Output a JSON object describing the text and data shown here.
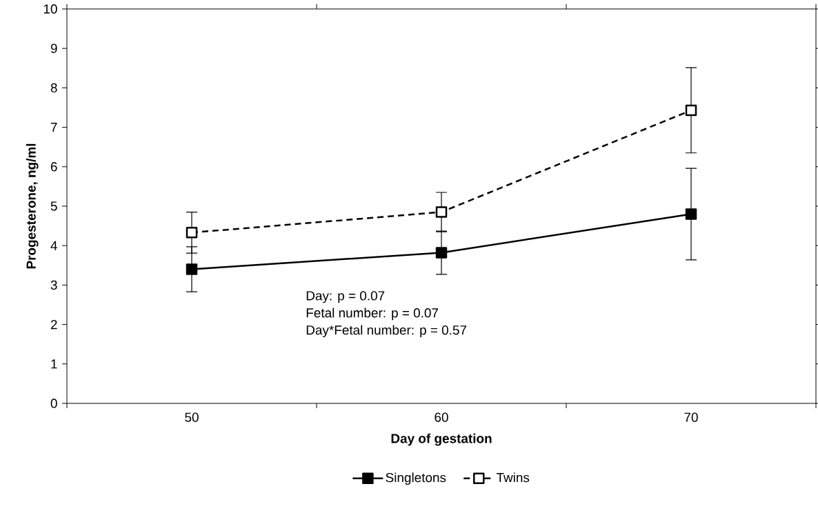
{
  "chart_data": {
    "type": "line",
    "xlabel": "Day of gestation",
    "ylabel": "Progesterone, ng/ml",
    "categories": [
      "50",
      "60",
      "70"
    ],
    "series": [
      {
        "name": "Singletons",
        "color": "#000000",
        "values": [
          3.4,
          3.82,
          4.8
        ],
        "errors": [
          0.57,
          0.55,
          1.16
        ],
        "line_style": "solid"
      },
      {
        "name": "Twins",
        "color": "#000000",
        "values": [
          4.33,
          4.85,
          7.43
        ],
        "errors": [
          0.52,
          0.5,
          1.08
        ],
        "line_style": "dashed"
      }
    ],
    "ylim": [
      0,
      10
    ],
    "yticks": [
      0,
      1,
      2,
      3,
      4,
      5,
      6,
      7,
      8,
      9,
      10
    ],
    "grid": false,
    "legend": "bottom",
    "marker": "square",
    "annotations": [
      "Day: p = 0.07",
      "Fetal number: p = 0.07",
      "Day*Fetal number: p = 0.57"
    ]
  }
}
